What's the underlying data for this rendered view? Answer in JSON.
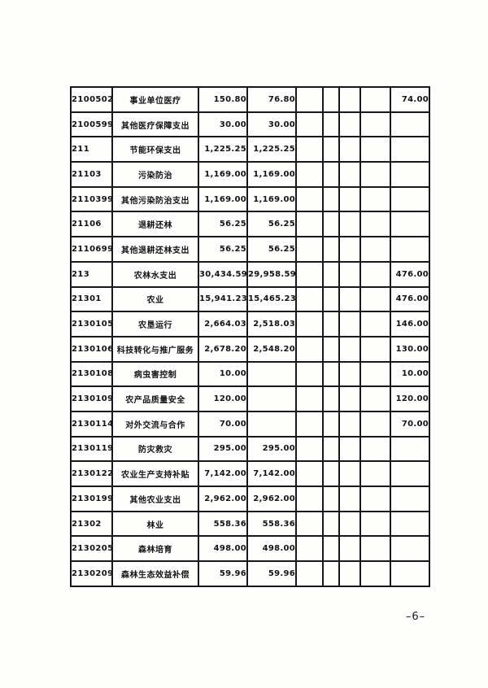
{
  "page": {
    "number_label": "–6–"
  },
  "table": {
    "note": "continuation page of a budget expenditure table; no header row visible on this page",
    "rows": [
      {
        "code": "2100502",
        "name": "事业单位医疗",
        "c3": "150.80",
        "c4": "76.80",
        "c5": "",
        "c6": "",
        "c7": "",
        "c8": "",
        "c9": "74.00"
      },
      {
        "code": "2100599",
        "name": "其他医疗保障支出",
        "c3": "30.00",
        "c4": "30.00",
        "c5": "",
        "c6": "",
        "c7": "",
        "c8": "",
        "c9": ""
      },
      {
        "code": "211",
        "name": "节能环保支出",
        "c3": "1,225.25",
        "c4": "1,225.25",
        "c5": "",
        "c6": "",
        "c7": "",
        "c8": "",
        "c9": ""
      },
      {
        "code": "21103",
        "name": "污染防治",
        "c3": "1,169.00",
        "c4": "1,169.00",
        "c5": "",
        "c6": "",
        "c7": "",
        "c8": "",
        "c9": ""
      },
      {
        "code": "2110399",
        "name": "其他污染防治支出",
        "c3": "1,169.00",
        "c4": "1,169.00",
        "c5": "",
        "c6": "",
        "c7": "",
        "c8": "",
        "c9": ""
      },
      {
        "code": "21106",
        "name": "退耕还林",
        "c3": "56.25",
        "c4": "56.25",
        "c5": "",
        "c6": "",
        "c7": "",
        "c8": "",
        "c9": ""
      },
      {
        "code": "2110699",
        "name": "其他退耕还林支出",
        "c3": "56.25",
        "c4": "56.25",
        "c5": "",
        "c6": "",
        "c7": "",
        "c8": "",
        "c9": ""
      },
      {
        "code": "213",
        "name": "农林水支出",
        "c3": "30,434.59",
        "c4": "29,958.59",
        "c5": "",
        "c6": "",
        "c7": "",
        "c8": "",
        "c9": "476.00"
      },
      {
        "code": "21301",
        "name": "农业",
        "c3": "15,941.23",
        "c4": "15,465.23",
        "c5": "",
        "c6": "",
        "c7": "",
        "c8": "",
        "c9": "476.00"
      },
      {
        "code": "2130105",
        "name": "农垦运行",
        "c3": "2,664.03",
        "c4": "2,518.03",
        "c5": "",
        "c6": "",
        "c7": "",
        "c8": "",
        "c9": "146.00"
      },
      {
        "code": "2130106",
        "name": "科技转化与推广服务",
        "c3": "2,678.20",
        "c4": "2,548.20",
        "c5": "",
        "c6": "",
        "c7": "",
        "c8": "",
        "c9": "130.00"
      },
      {
        "code": "2130108",
        "name": "病虫害控制",
        "c3": "10.00",
        "c4": "",
        "c5": "",
        "c6": "",
        "c7": "",
        "c8": "",
        "c9": "10.00"
      },
      {
        "code": "2130109",
        "name": "农产品质量安全",
        "c3": "120.00",
        "c4": "",
        "c5": "",
        "c6": "",
        "c7": "",
        "c8": "",
        "c9": "120.00"
      },
      {
        "code": "2130114",
        "name": "对外交流与合作",
        "c3": "70.00",
        "c4": "",
        "c5": "",
        "c6": "",
        "c7": "",
        "c8": "",
        "c9": "70.00"
      },
      {
        "code": "2130119",
        "name": "防灾救灾",
        "c3": "295.00",
        "c4": "295.00",
        "c5": "",
        "c6": "",
        "c7": "",
        "c8": "",
        "c9": ""
      },
      {
        "code": "2130122",
        "name": "农业生产支持补贴",
        "c3": "7,142.00",
        "c4": "7,142.00",
        "c5": "",
        "c6": "",
        "c7": "",
        "c8": "",
        "c9": ""
      },
      {
        "code": "2130199",
        "name": "其他农业支出",
        "c3": "2,962.00",
        "c4": "2,962.00",
        "c5": "",
        "c6": "",
        "c7": "",
        "c8": "",
        "c9": ""
      },
      {
        "code": "21302",
        "name": "林业",
        "c3": "558.36",
        "c4": "558.36",
        "c5": "",
        "c6": "",
        "c7": "",
        "c8": "",
        "c9": ""
      },
      {
        "code": "2130205",
        "name": "森林培育",
        "c3": "498.00",
        "c4": "498.00",
        "c5": "",
        "c6": "",
        "c7": "",
        "c8": "",
        "c9": ""
      },
      {
        "code": "2130209",
        "name": "森林生态效益补偿",
        "c3": "59.96",
        "c4": "59.96",
        "c5": "",
        "c6": "",
        "c7": "",
        "c8": "",
        "c9": ""
      }
    ]
  }
}
